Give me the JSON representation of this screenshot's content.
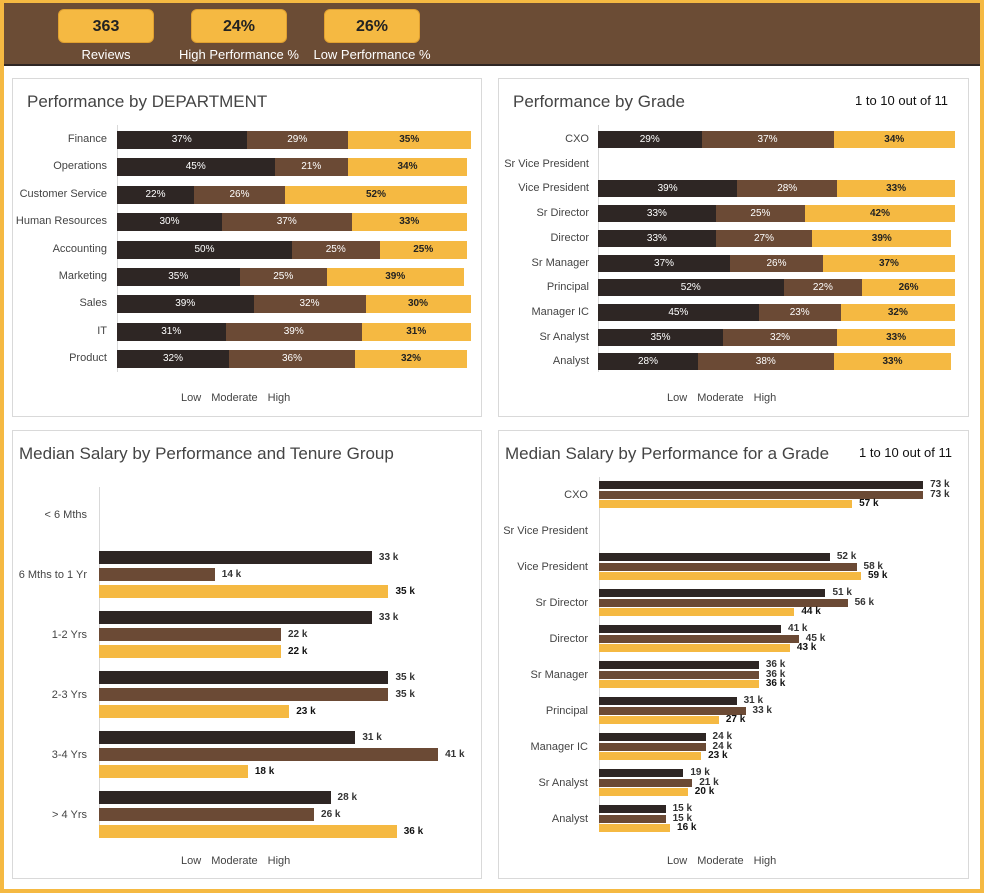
{
  "colors": {
    "low": "#2e2624",
    "moderate": "#6b4a35",
    "high": "#f5b942",
    "header": "#6b4c35"
  },
  "kpis": [
    {
      "value": "363",
      "label": "Reviews"
    },
    {
      "value": "24%",
      "label": "High Performance %"
    },
    {
      "value": "26%",
      "label": "Low Performance %"
    }
  ],
  "legend": [
    "Low",
    "Moderate",
    "High"
  ],
  "chart_data": [
    {
      "type": "bar",
      "stacked": true,
      "orientation": "horizontal",
      "title": "Performance by DEPARTMENT",
      "categories": [
        "Finance",
        "Operations",
        "Customer Service",
        "Human Resources",
        "Accounting",
        "Marketing",
        "Sales",
        "IT",
        "Product"
      ],
      "series": [
        {
          "name": "Low",
          "values": [
            37,
            45,
            22,
            30,
            50,
            35,
            39,
            31,
            32
          ]
        },
        {
          "name": "Moderate",
          "values": [
            29,
            21,
            26,
            37,
            25,
            25,
            32,
            39,
            36
          ]
        },
        {
          "name": "High",
          "values": [
            35,
            34,
            52,
            33,
            25,
            39,
            30,
            31,
            32
          ]
        }
      ],
      "unit": "%",
      "legend": "bottom"
    },
    {
      "type": "bar",
      "stacked": true,
      "orientation": "horizontal",
      "title": "Performance by Grade",
      "pager": "1 to 10 out of 11",
      "categories": [
        "CXO",
        "Sr Vice President",
        "Vice President",
        "Sr Director",
        "Director",
        "Sr Manager",
        "Principal",
        "Manager IC",
        "Sr Analyst",
        "Analyst"
      ],
      "series": [
        {
          "name": "Low",
          "values": [
            29,
            null,
            39,
            33,
            33,
            37,
            52,
            45,
            35,
            28
          ]
        },
        {
          "name": "Moderate",
          "values": [
            37,
            null,
            28,
            25,
            27,
            26,
            22,
            23,
            32,
            38
          ]
        },
        {
          "name": "High",
          "values": [
            34,
            null,
            33,
            42,
            39,
            37,
            26,
            32,
            33,
            33
          ]
        }
      ],
      "unit": "%",
      "legend": "bottom"
    },
    {
      "type": "bar",
      "orientation": "horizontal",
      "title": "Median Salary by Performance and Tenure Group",
      "categories": [
        "< 6 Mths",
        "6 Mths to 1 Yr",
        "1-2 Yrs",
        "2-3 Yrs",
        "3-4 Yrs",
        "> 4 Yrs"
      ],
      "series": [
        {
          "name": "Low",
          "values": [
            null,
            33,
            33,
            35,
            31,
            28
          ]
        },
        {
          "name": "Moderate",
          "values": [
            null,
            14,
            22,
            35,
            41,
            26
          ]
        },
        {
          "name": "High",
          "values": [
            null,
            35,
            22,
            23,
            18,
            36
          ]
        }
      ],
      "unit": "k",
      "legend": "bottom"
    },
    {
      "type": "bar",
      "orientation": "horizontal",
      "title": "Median Salary by Performance for a Grade",
      "pager": "1 to 10 out of 11",
      "categories": [
        "CXO",
        "Sr Vice President",
        "Vice President",
        "Sr Director",
        "Director",
        "Sr Manager",
        "Principal",
        "Manager IC",
        "Sr Analyst",
        "Analyst"
      ],
      "series": [
        {
          "name": "Low",
          "values": [
            73,
            null,
            52,
            51,
            41,
            36,
            31,
            24,
            19,
            15
          ]
        },
        {
          "name": "Moderate",
          "values": [
            73,
            null,
            58,
            56,
            45,
            36,
            33,
            24,
            21,
            15
          ]
        },
        {
          "name": "High",
          "values": [
            57,
            null,
            59,
            44,
            43,
            36,
            27,
            23,
            20,
            16
          ]
        }
      ],
      "unit": "k",
      "legend": "bottom"
    }
  ]
}
